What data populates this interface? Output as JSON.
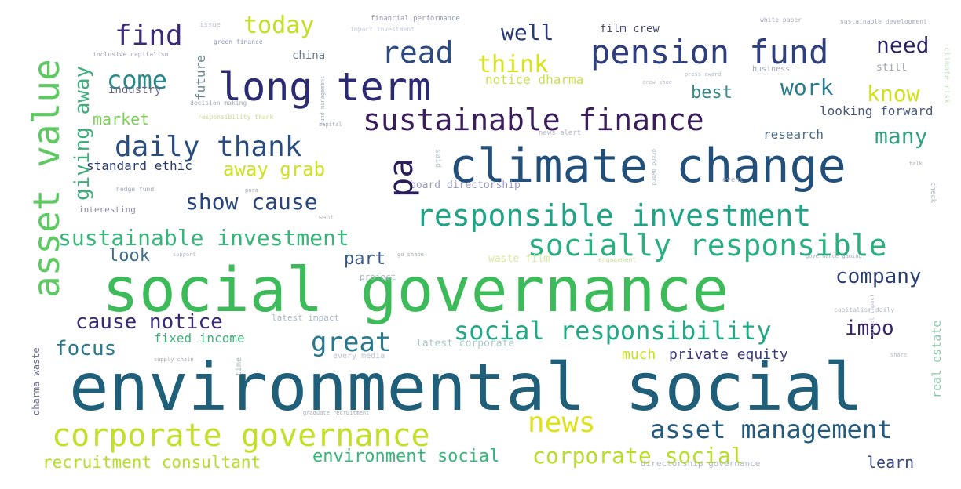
{
  "words": [
    {
      "text": "environmental social",
      "color": "#1f5f7a"
    },
    {
      "text": "social governance",
      "color": "#3dbb5a"
    },
    {
      "text": "climate change",
      "color": "#23507a"
    },
    {
      "text": "long term",
      "color": "#2c2a73"
    },
    {
      "text": "pension fund",
      "color": "#2e3f7c"
    },
    {
      "text": "corporate governance",
      "color": "#c4df2a"
    },
    {
      "text": "responsible investment",
      "color": "#20a386"
    },
    {
      "text": "socially responsible",
      "color": "#2ab07f"
    },
    {
      "text": "sustainable finance",
      "color": "#3b1d5b"
    },
    {
      "text": "daily thank",
      "color": "#2a4d80"
    },
    {
      "text": "asset value",
      "color": "#5ec962"
    },
    {
      "text": "asset management",
      "color": "#245b80"
    },
    {
      "text": "social responsibility",
      "color": "#22a884"
    },
    {
      "text": "corporate social",
      "color": "#b8de29"
    },
    {
      "text": "sustainable investment",
      "color": "#35b779"
    },
    {
      "text": "cause notice",
      "color": "#3b2a7a"
    },
    {
      "text": "show cause",
      "color": "#27457c"
    },
    {
      "text": "read",
      "color": "#2e4b7f"
    },
    {
      "text": "find",
      "color": "#3a2a78"
    },
    {
      "text": "come",
      "color": "#2a8a8a"
    },
    {
      "text": "news",
      "color": "#dfe21b"
    },
    {
      "text": "great",
      "color": "#29788e"
    },
    {
      "text": "company",
      "color": "#2a3d72"
    },
    {
      "text": "focus",
      "color": "#2d7a8e"
    },
    {
      "text": "today",
      "color": "#c2df23"
    },
    {
      "text": "well",
      "color": "#2a3a72"
    },
    {
      "text": "need",
      "color": "#2a2363"
    },
    {
      "text": "pa",
      "color": "#2d1e5a"
    },
    {
      "text": "think",
      "color": "#d8e219"
    },
    {
      "text": "work",
      "color": "#2a7b8e"
    },
    {
      "text": "know",
      "color": "#d0e11c"
    },
    {
      "text": "many",
      "color": "#35a086"
    },
    {
      "text": "impo",
      "color": "#3a2470"
    },
    {
      "text": "away grab",
      "color": "#cfe11f"
    },
    {
      "text": "giving away",
      "color": "#3fae7a"
    },
    {
      "text": "environment social",
      "color": "#35b779"
    },
    {
      "text": "recruitment consultant",
      "color": "#b5de2b"
    },
    {
      "text": "best",
      "color": "#3a8a8c"
    },
    {
      "text": "look",
      "color": "#3f6f8a"
    },
    {
      "text": "part",
      "color": "#3a5a86"
    },
    {
      "text": "learn",
      "color": "#3a4a7a"
    },
    {
      "text": "market",
      "color": "#7ccf57"
    },
    {
      "text": "standard ethic",
      "color": "#2a3a70"
    },
    {
      "text": "fixed income",
      "color": "#3fb07a"
    },
    {
      "text": "much",
      "color": "#c8df2a"
    },
    {
      "text": "private equity",
      "color": "#3a3a7a"
    },
    {
      "text": "research",
      "color": "#4a6a8a"
    },
    {
      "text": "looking forward",
      "color": "#4a5a7e"
    },
    {
      "text": "china",
      "color": "#6a7a8e"
    },
    {
      "text": "industry",
      "color": "#6a6a8e"
    },
    {
      "text": "future",
      "color": "#6a8a8e"
    },
    {
      "text": "film crew",
      "color": "#4a4a70"
    },
    {
      "text": "notice dharma",
      "color": "#c8e04a"
    },
    {
      "text": "board directorship",
      "color": "#9a9ac0"
    },
    {
      "text": "interesting",
      "color": "#8a8aa8"
    },
    {
      "text": "latest impact",
      "color": "#a8b8c8"
    },
    {
      "text": "latest corporate",
      "color": "#a8c8c8"
    },
    {
      "text": "project",
      "color": "#a8b0c0"
    },
    {
      "text": "waste film",
      "color": "#d8e8a0"
    },
    {
      "text": "dharma waste",
      "color": "#6a6a90"
    },
    {
      "text": "real estate",
      "color": "#8ac8a8"
    },
    {
      "text": "still",
      "color": "#9aa0b0"
    },
    {
      "text": "directorship governance",
      "color": "#b0b8c8"
    },
    {
      "text": "every media",
      "color": "#b8c0d0"
    },
    {
      "text": "business",
      "color": "#a0a8b8"
    },
    {
      "text": "said",
      "color": "#b8c8c8"
    },
    {
      "text": "news alert",
      "color": "#b0b8c8"
    },
    {
      "text": "time",
      "color": "#a8b8c0"
    },
    {
      "text": "check",
      "color": "#b0b8c8"
    },
    {
      "text": "issue",
      "color": "#c0c8d8"
    },
    {
      "text": "financial performance",
      "color": "#9098b8"
    },
    {
      "text": "impact investment",
      "color": "#c0c8d8"
    },
    {
      "text": "green finance",
      "color": "#9098b8"
    },
    {
      "text": "inclusive capitalism",
      "color": "#a0a0b8"
    },
    {
      "text": "decision making",
      "color": "#a0a8b8"
    },
    {
      "text": "responsibility thank",
      "color": "#c8d890"
    },
    {
      "text": "climate risk",
      "color": "#c8e0c0"
    },
    {
      "text": "white paper",
      "color": "#a0a8b8"
    },
    {
      "text": "sustainable development",
      "color": "#a0a8b8"
    },
    {
      "text": "hedge fund",
      "color": "#a0a8b8"
    },
    {
      "text": "supply chain",
      "color": "#a0a8b8"
    },
    {
      "text": "capitalism daily",
      "color": "#b0b8c8"
    },
    {
      "text": "governance gaming",
      "color": "#a0a8b8"
    },
    {
      "text": "social impact",
      "color": "#b0b8c8"
    },
    {
      "text": "event",
      "color": "#a0a8b8"
    },
    {
      "text": "capital",
      "color": "#a0a8b8"
    },
    {
      "text": "graduate recruitment",
      "color": "#a0a8b8"
    },
    {
      "text": "share",
      "color": "#b0b8c8"
    },
    {
      "text": "support",
      "color": "#b0b8c8"
    },
    {
      "text": "want",
      "color": "#b8c0c8"
    },
    {
      "text": "para",
      "color": "#a0a8b8"
    },
    {
      "text": "engagement",
      "color": "#c8d8a0"
    },
    {
      "text": "grand award",
      "color": "#b0b8c8"
    },
    {
      "text": "crew shoe",
      "color": "#b0b8c8"
    },
    {
      "text": "press award",
      "color": "#b0b8c8"
    },
    {
      "text": "fund management",
      "color": "#a0a8b8"
    },
    {
      "text": "go shape",
      "color": "#a0a8b8"
    },
    {
      "text": "talk",
      "color": "#a0a8b8"
    }
  ]
}
